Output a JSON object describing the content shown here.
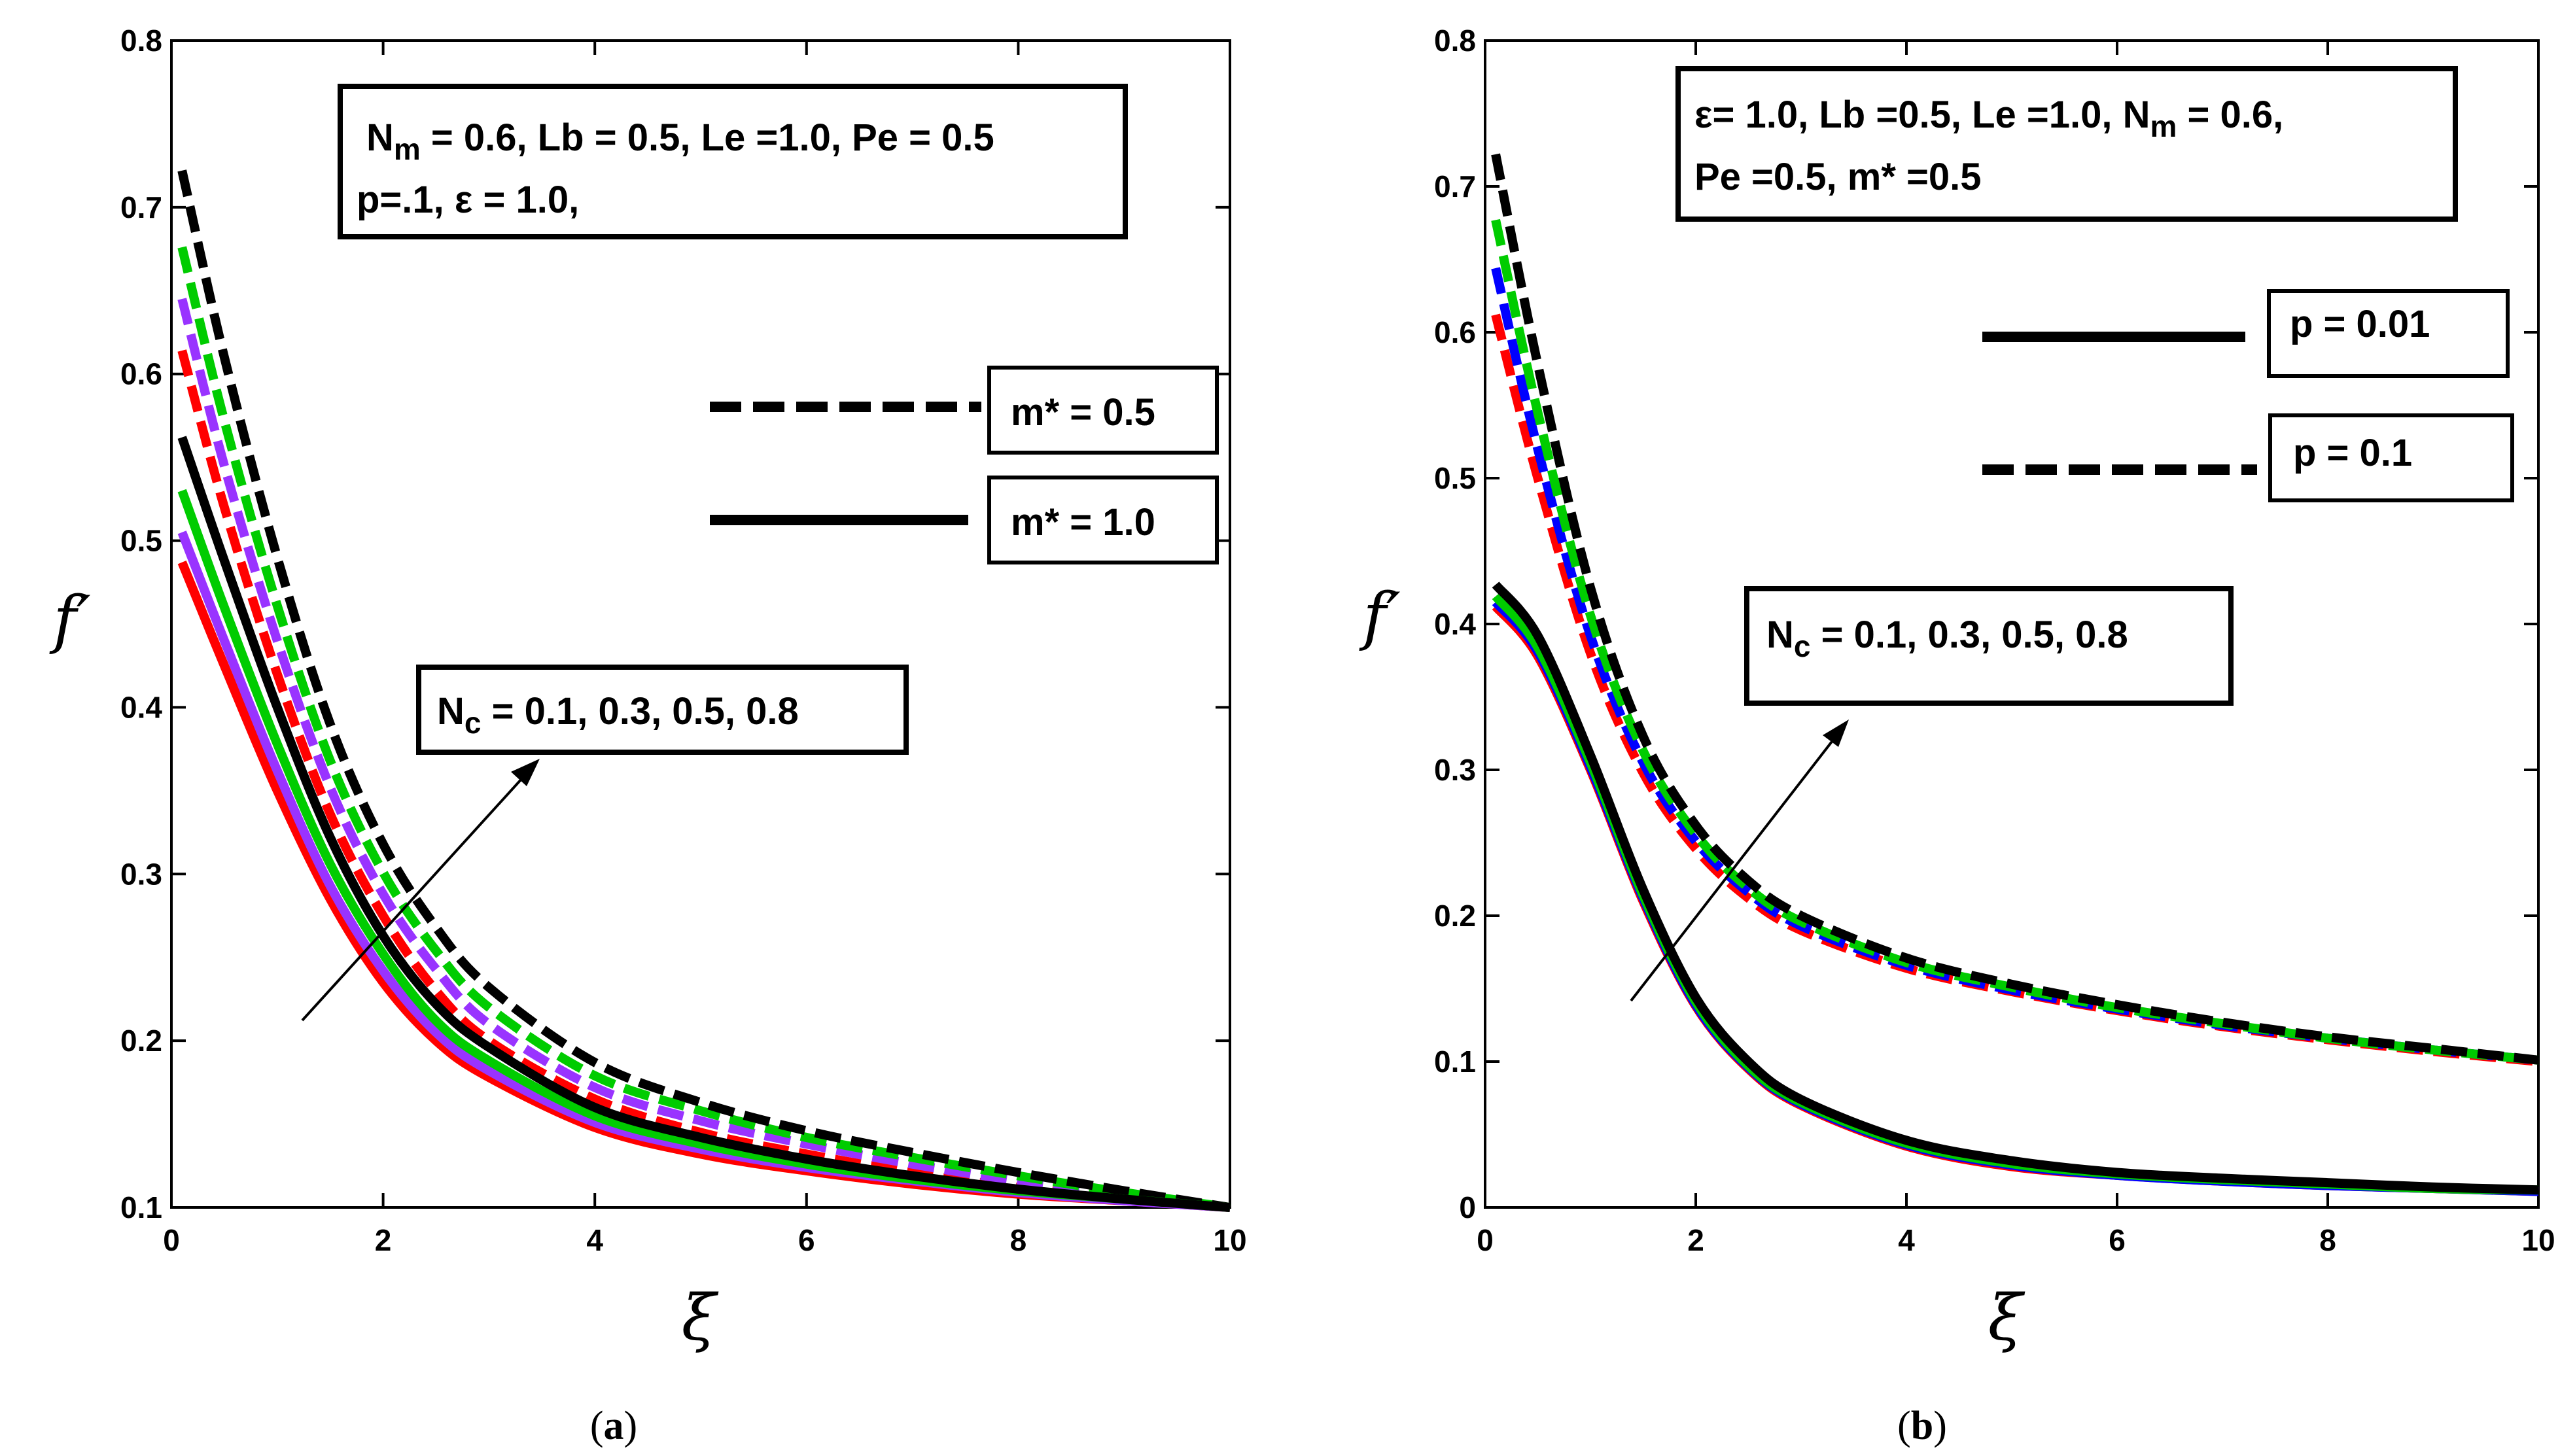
{
  "chart_data": [
    {
      "type": "line",
      "panel": "a",
      "caption": {
        "open": "(",
        "letter": "a",
        "close": ")"
      },
      "xlabel": "ξ",
      "ylabel": "f′",
      "xlim": [
        0,
        10
      ],
      "ylim": [
        0.1,
        0.8
      ],
      "xticks": [
        "0",
        "2",
        "4",
        "6",
        "8",
        "10"
      ],
      "yticks": [
        "0.1",
        "0.2",
        "0.3",
        "0.4",
        "0.5",
        "0.6",
        "0.7",
        "0.8"
      ],
      "params_box": {
        "line1": "N_m = 0.6, Lb = 0.5, Le =1.0, Pe = 0.5",
        "line2": "p=.1, ε = 1.0,"
      },
      "legend": [
        {
          "label": "m* = 0.5",
          "style": "dashed"
        },
        {
          "label": "m* = 1.0",
          "style": "solid"
        }
      ],
      "annotation": {
        "text": "N_c = 0.1, 0.3, 0.5, 0.8",
        "direction": "arrow from lower-left to upper-right"
      },
      "x": [
        0.1,
        0.5,
        1,
        1.5,
        2,
        2.5,
        3,
        4,
        5,
        6,
        7,
        8,
        9,
        10
      ],
      "series": [
        {
          "name": "m* = 0.5, Nc = 0.1",
          "color": "#ff0000",
          "style": "dashed",
          "values": [
            0.614,
            0.52,
            0.42,
            0.336,
            0.275,
            0.23,
            0.2,
            0.165,
            0.145,
            0.132,
            0.121,
            0.112,
            0.106,
            0.1
          ]
        },
        {
          "name": "m* = 0.5, Nc = 0.3",
          "color": "#9933ff",
          "style": "dashed",
          "values": [
            0.645,
            0.545,
            0.44,
            0.352,
            0.288,
            0.243,
            0.21,
            0.172,
            0.152,
            0.138,
            0.126,
            0.116,
            0.108,
            0.1
          ]
        },
        {
          "name": "m* = 0.5, Nc = 0.5",
          "color": "#00cc00",
          "style": "dashed",
          "values": [
            0.676,
            0.572,
            0.461,
            0.368,
            0.301,
            0.254,
            0.22,
            0.179,
            0.158,
            0.142,
            0.13,
            0.119,
            0.109,
            0.1
          ]
        },
        {
          "name": "m* = 0.5, Nc = 0.8",
          "color": "#000000",
          "style": "dashed",
          "values": [
            0.722,
            0.61,
            0.49,
            0.39,
            0.318,
            0.268,
            0.232,
            0.187,
            0.163,
            0.146,
            0.133,
            0.121,
            0.11,
            0.1
          ]
        },
        {
          "name": "m* = 1.0, Nc = 0.1",
          "color": "#ff0000",
          "style": "solid",
          "values": [
            0.487,
            0.425,
            0.35,
            0.285,
            0.235,
            0.2,
            0.178,
            0.148,
            0.132,
            0.122,
            0.114,
            0.108,
            0.104,
            0.1
          ]
        },
        {
          "name": "m* = 1.0, Nc = 0.3",
          "color": "#9933ff",
          "style": "solid",
          "values": [
            0.505,
            0.44,
            0.362,
            0.293,
            0.242,
            0.205,
            0.182,
            0.151,
            0.135,
            0.124,
            0.116,
            0.109,
            0.104,
            0.1
          ]
        },
        {
          "name": "m* = 1.0, Nc = 0.5",
          "color": "#00cc00",
          "style": "solid",
          "values": [
            0.53,
            0.46,
            0.378,
            0.306,
            0.252,
            0.212,
            0.188,
            0.155,
            0.138,
            0.126,
            0.117,
            0.11,
            0.105,
            0.1
          ]
        },
        {
          "name": "m* = 1.0, Nc = 0.8",
          "color": "#000000",
          "style": "solid",
          "values": [
            0.562,
            0.488,
            0.4,
            0.322,
            0.263,
            0.222,
            0.196,
            0.16,
            0.142,
            0.129,
            0.119,
            0.111,
            0.105,
            0.1
          ]
        }
      ]
    },
    {
      "type": "line",
      "panel": "b",
      "caption": {
        "open": "(",
        "letter": "b",
        "close": ")"
      },
      "xlabel": "ξ",
      "ylabel": "f′",
      "xlim": [
        0,
        10
      ],
      "ylim": [
        0,
        0.8
      ],
      "xticks": [
        "0",
        "2",
        "4",
        "6",
        "8",
        "10"
      ],
      "yticks": [
        "0",
        "0.1",
        "0.2",
        "0.3",
        "0.4",
        "0.5",
        "0.6",
        "0.7",
        "0.8"
      ],
      "params_box": {
        "line1": "ε= 1.0, Lb =0.5, Le =1.0, N_m = 0.6,",
        "line2": "Pe =0.5, m* =0.5"
      },
      "legend": [
        {
          "label": "p = 0.01",
          "style": "solid"
        },
        {
          "label": "p = 0.1",
          "style": "dashed"
        }
      ],
      "annotation": {
        "text": "N_c = 0.1, 0.3, 0.5, 0.8",
        "direction": "arrow from lower-left to upper-right"
      },
      "x": [
        0.1,
        0.5,
        1,
        1.5,
        2,
        2.5,
        3,
        4,
        5,
        6,
        7,
        8,
        9,
        10
      ],
      "series": [
        {
          "name": "p = 0.1, Nc = 0.1",
          "color": "#ff0000",
          "style": "dashed",
          "values": [
            0.612,
            0.5,
            0.38,
            0.298,
            0.246,
            0.212,
            0.19,
            0.164,
            0.148,
            0.135,
            0.124,
            0.115,
            0.107,
            0.1
          ]
        },
        {
          "name": "p = 0.1, Nc = 0.3",
          "color": "#0000ff",
          "style": "dashed",
          "values": [
            0.644,
            0.52,
            0.392,
            0.305,
            0.251,
            0.216,
            0.193,
            0.166,
            0.149,
            0.136,
            0.125,
            0.116,
            0.108,
            0.101
          ]
        },
        {
          "name": "p = 0.1, Nc = 0.5",
          "color": "#00cc00",
          "style": "dashed",
          "values": [
            0.677,
            0.545,
            0.406,
            0.313,
            0.256,
            0.219,
            0.196,
            0.168,
            0.151,
            0.137,
            0.126,
            0.116,
            0.108,
            0.101
          ]
        },
        {
          "name": "p = 0.1, Nc = 0.8",
          "color": "#000000",
          "style": "dashed",
          "values": [
            0.722,
            0.578,
            0.425,
            0.323,
            0.262,
            0.224,
            0.2,
            0.171,
            0.153,
            0.139,
            0.127,
            0.117,
            0.109,
            0.101
          ]
        },
        {
          "name": "p = 0.01, Nc = 0.1",
          "color": "#ff0000",
          "style": "solid",
          "values": [
            0.412,
            0.378,
            0.3,
            0.21,
            0.138,
            0.095,
            0.07,
            0.042,
            0.028,
            0.022,
            0.018,
            0.015,
            0.013,
            0.011
          ]
        },
        {
          "name": "p = 0.01, Nc = 0.3",
          "color": "#0000ff",
          "style": "solid",
          "values": [
            0.415,
            0.381,
            0.302,
            0.212,
            0.139,
            0.096,
            0.071,
            0.043,
            0.029,
            0.022,
            0.018,
            0.015,
            0.013,
            0.011
          ]
        },
        {
          "name": "p = 0.01, Nc = 0.5",
          "color": "#00cc00",
          "style": "solid",
          "values": [
            0.419,
            0.384,
            0.305,
            0.214,
            0.141,
            0.097,
            0.072,
            0.044,
            0.03,
            0.023,
            0.019,
            0.016,
            0.013,
            0.012
          ]
        },
        {
          "name": "p = 0.01, Nc = 0.8",
          "color": "#000000",
          "style": "solid",
          "values": [
            0.427,
            0.392,
            0.31,
            0.218,
            0.144,
            0.1,
            0.074,
            0.046,
            0.032,
            0.024,
            0.02,
            0.017,
            0.014,
            0.012
          ]
        }
      ]
    }
  ]
}
